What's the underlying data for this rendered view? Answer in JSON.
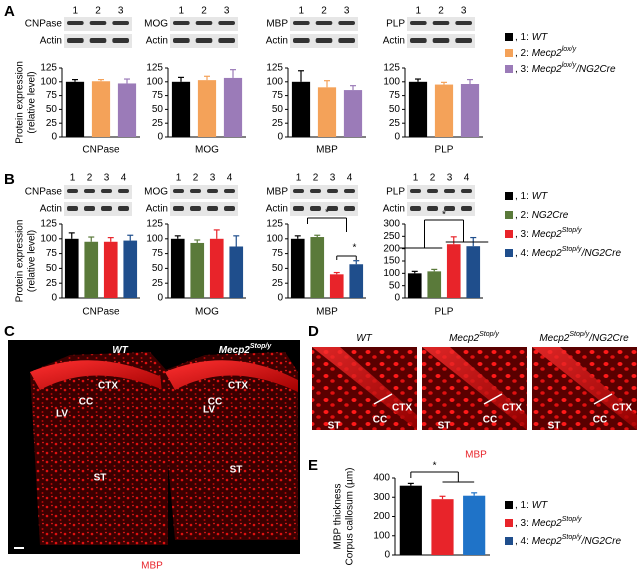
{
  "panel_labels": [
    "A",
    "B",
    "C",
    "D",
    "E"
  ],
  "legends": [
    [
      {
        "color": "#000000",
        "parts": [
          {
            "text": ", 1: "
          },
          {
            "text": "WT",
            "italic": true
          }
        ]
      },
      {
        "color": "#f4a259",
        "parts": [
          {
            "text": ", 2: "
          },
          {
            "text": "Mecp2",
            "italic": true
          },
          {
            "text": "lox/y",
            "sup": true,
            "italic": true
          }
        ]
      },
      {
        "color": "#9b7bb8",
        "parts": [
          {
            "text": ", 3: "
          },
          {
            "text": "Mecp2",
            "italic": true
          },
          {
            "text": "lox/y",
            "sup": true,
            "italic": true
          },
          {
            "text": "/NG2Cre",
            "italic": true
          }
        ]
      }
    ],
    [
      {
        "color": "#000000",
        "parts": [
          {
            "text": ", 1: "
          },
          {
            "text": "WT",
            "italic": true
          }
        ]
      },
      {
        "color": "#5a7a3a",
        "parts": [
          {
            "text": ", 2: "
          },
          {
            "text": "NG2Cre",
            "italic": true
          }
        ]
      },
      {
        "color": "#e8242a",
        "parts": [
          {
            "text": ", 3: "
          },
          {
            "text": "Mecp2",
            "italic": true
          },
          {
            "text": "Stop/y",
            "sup": true,
            "italic": true
          }
        ]
      },
      {
        "color": "#1f4e8c",
        "parts": [
          {
            "text": ", 4: "
          },
          {
            "text": "Mecp2",
            "italic": true
          },
          {
            "text": "Stop/y",
            "sup": true,
            "italic": true
          },
          {
            "text": "/NG2Cre",
            "italic": true
          }
        ]
      }
    ],
    [
      {
        "color": "#000000",
        "parts": [
          {
            "text": ", 1: "
          },
          {
            "text": "WT",
            "italic": true
          }
        ]
      },
      {
        "color": "#e8242a",
        "parts": [
          {
            "text": ", 3: "
          },
          {
            "text": "Mecp2",
            "italic": true
          },
          {
            "text": "Stop/y",
            "sup": true,
            "italic": true
          }
        ]
      },
      {
        "color": "#1f4e8c",
        "parts": [
          {
            "text": ", 4: "
          },
          {
            "text": "Mecp2",
            "italic": true
          },
          {
            "text": "Stop/y",
            "sup": true,
            "italic": true
          },
          {
            "text": "/NG2Cre",
            "italic": true
          }
        ]
      }
    ]
  ],
  "chart_data": [
    {
      "type": "bar",
      "title": "CNPase",
      "blot_rows": [
        "CNPase",
        "Actin"
      ],
      "categories": [
        "1",
        "2",
        "3"
      ],
      "values": [
        100,
        101,
        97
      ],
      "errors": [
        4,
        3,
        8
      ],
      "colors": [
        "#000000",
        "#f4a259",
        "#9b7bb8"
      ],
      "ylim": [
        0,
        125
      ],
      "yticks": [
        0,
        25,
        50,
        75,
        100,
        125
      ],
      "ylabel": [
        "Protein expression",
        "(relative level)"
      ]
    },
    {
      "type": "bar",
      "title": "MOG",
      "blot_rows": [
        "MOG",
        "Actin"
      ],
      "categories": [
        "1",
        "2",
        "3"
      ],
      "values": [
        100,
        103,
        107
      ],
      "errors": [
        8,
        7,
        15
      ],
      "colors": [
        "#000000",
        "#f4a259",
        "#9b7bb8"
      ],
      "ylim": [
        0,
        125
      ],
      "yticks": [
        0,
        25,
        50,
        75,
        100,
        125
      ]
    },
    {
      "type": "bar",
      "title": "MBP",
      "blot_rows": [
        "MBP",
        "Actin"
      ],
      "categories": [
        "1",
        "2",
        "3"
      ],
      "values": [
        100,
        90,
        85
      ],
      "errors": [
        20,
        12,
        8
      ],
      "colors": [
        "#000000",
        "#f4a259",
        "#9b7bb8"
      ],
      "ylim": [
        0,
        125
      ],
      "yticks": [
        0,
        25,
        50,
        75,
        100,
        125
      ]
    },
    {
      "type": "bar",
      "title": "PLP",
      "blot_rows": [
        "PLP",
        "Actin"
      ],
      "categories": [
        "1",
        "2",
        "3"
      ],
      "values": [
        100,
        95,
        96
      ],
      "errors": [
        5,
        4,
        8
      ],
      "colors": [
        "#000000",
        "#f4a259",
        "#9b7bb8"
      ],
      "ylim": [
        0,
        125
      ],
      "yticks": [
        0,
        25,
        50,
        75,
        100,
        125
      ]
    },
    {
      "type": "bar",
      "title": "CNPase",
      "blot_rows": [
        "CNPase",
        "Actin"
      ],
      "categories": [
        "1",
        "2",
        "3",
        "4"
      ],
      "values": [
        100,
        95,
        95,
        97
      ],
      "errors": [
        10,
        8,
        7,
        9
      ],
      "colors": [
        "#000000",
        "#5a7a3a",
        "#e8242a",
        "#1f4e8c"
      ],
      "ylim": [
        0,
        125
      ],
      "yticks": [
        0,
        25,
        50,
        75,
        100,
        125
      ],
      "ylabel": [
        "Protein expression",
        "(relative level)"
      ]
    },
    {
      "type": "bar",
      "title": "MOG",
      "blot_rows": [
        "MOG",
        "Actin"
      ],
      "categories": [
        "1",
        "2",
        "3",
        "4"
      ],
      "values": [
        100,
        93,
        100,
        87
      ],
      "errors": [
        5,
        5,
        15,
        18
      ],
      "colors": [
        "#000000",
        "#5a7a3a",
        "#e8242a",
        "#1f4e8c"
      ],
      "ylim": [
        0,
        125
      ],
      "yticks": [
        0,
        25,
        50,
        75,
        100,
        125
      ]
    },
    {
      "type": "bar",
      "title": "MBP",
      "blot_rows": [
        "MBP",
        "Actin"
      ],
      "categories": [
        "1",
        "2",
        "3",
        "4"
      ],
      "values": [
        100,
        103,
        40,
        57
      ],
      "errors": [
        5,
        3,
        3,
        6
      ],
      "colors": [
        "#000000",
        "#5a7a3a",
        "#e8242a",
        "#1f4e8c"
      ],
      "ylim": [
        0,
        125
      ],
      "yticks": [
        0,
        25,
        50,
        75,
        100,
        125
      ],
      "annotations": [
        "*",
        "*"
      ]
    },
    {
      "type": "bar",
      "title": "PLP",
      "blot_rows": [
        "PLP",
        "Actin"
      ],
      "categories": [
        "1",
        "2",
        "3",
        "4"
      ],
      "values": [
        100,
        108,
        218,
        210
      ],
      "errors": [
        8,
        8,
        30,
        35
      ],
      "colors": [
        "#000000",
        "#5a7a3a",
        "#e8242a",
        "#1f4e8c"
      ],
      "ylim": [
        0,
        300
      ],
      "yticks": [
        0,
        50,
        100,
        150,
        200,
        250,
        300
      ],
      "annotations": [
        "*"
      ]
    },
    {
      "type": "bar",
      "categories": [
        "1",
        "3",
        "4"
      ],
      "values": [
        360,
        290,
        308
      ],
      "errors": [
        12,
        15,
        15
      ],
      "colors": [
        "#000000",
        "#e8242a",
        "#1f73c8"
      ],
      "ylim": [
        0,
        400
      ],
      "yticks": [
        0,
        100,
        200,
        300,
        400
      ],
      "ylabel": [
        "MBP thickness",
        "Corpus callosum (µm)"
      ],
      "annotations": [
        "*"
      ]
    }
  ],
  "images": {
    "C": {
      "stain": "MBP",
      "panels": [
        {
          "title": [
            {
              "text": "WT",
              "italic": true
            }
          ],
          "regions": [
            "CTX",
            "CC",
            "LV",
            "ST"
          ]
        },
        {
          "title": [
            {
              "text": "Mecp2",
              "italic": true
            },
            {
              "text": "Stop/y",
              "sup": true,
              "italic": true
            }
          ],
          "regions": [
            "CTX",
            "CC",
            "LV",
            "ST"
          ]
        }
      ]
    },
    "D": {
      "stain": "MBP",
      "panels": [
        {
          "title": [
            {
              "text": "WT",
              "italic": true
            }
          ],
          "regions": [
            "CTX",
            "CC",
            "ST"
          ]
        },
        {
          "title": [
            {
              "text": "Mecp2",
              "italic": true
            },
            {
              "text": "Stop/y",
              "sup": true,
              "italic": true
            }
          ],
          "regions": [
            "CTX",
            "CC",
            "ST"
          ]
        },
        {
          "title": [
            {
              "text": "Mecp2",
              "italic": true
            },
            {
              "text": "Stop/y",
              "sup": true,
              "italic": true
            },
            {
              "text": "/NG2Cre",
              "italic": true
            }
          ],
          "regions": [
            "CTX",
            "CC",
            "ST"
          ]
        }
      ]
    }
  }
}
